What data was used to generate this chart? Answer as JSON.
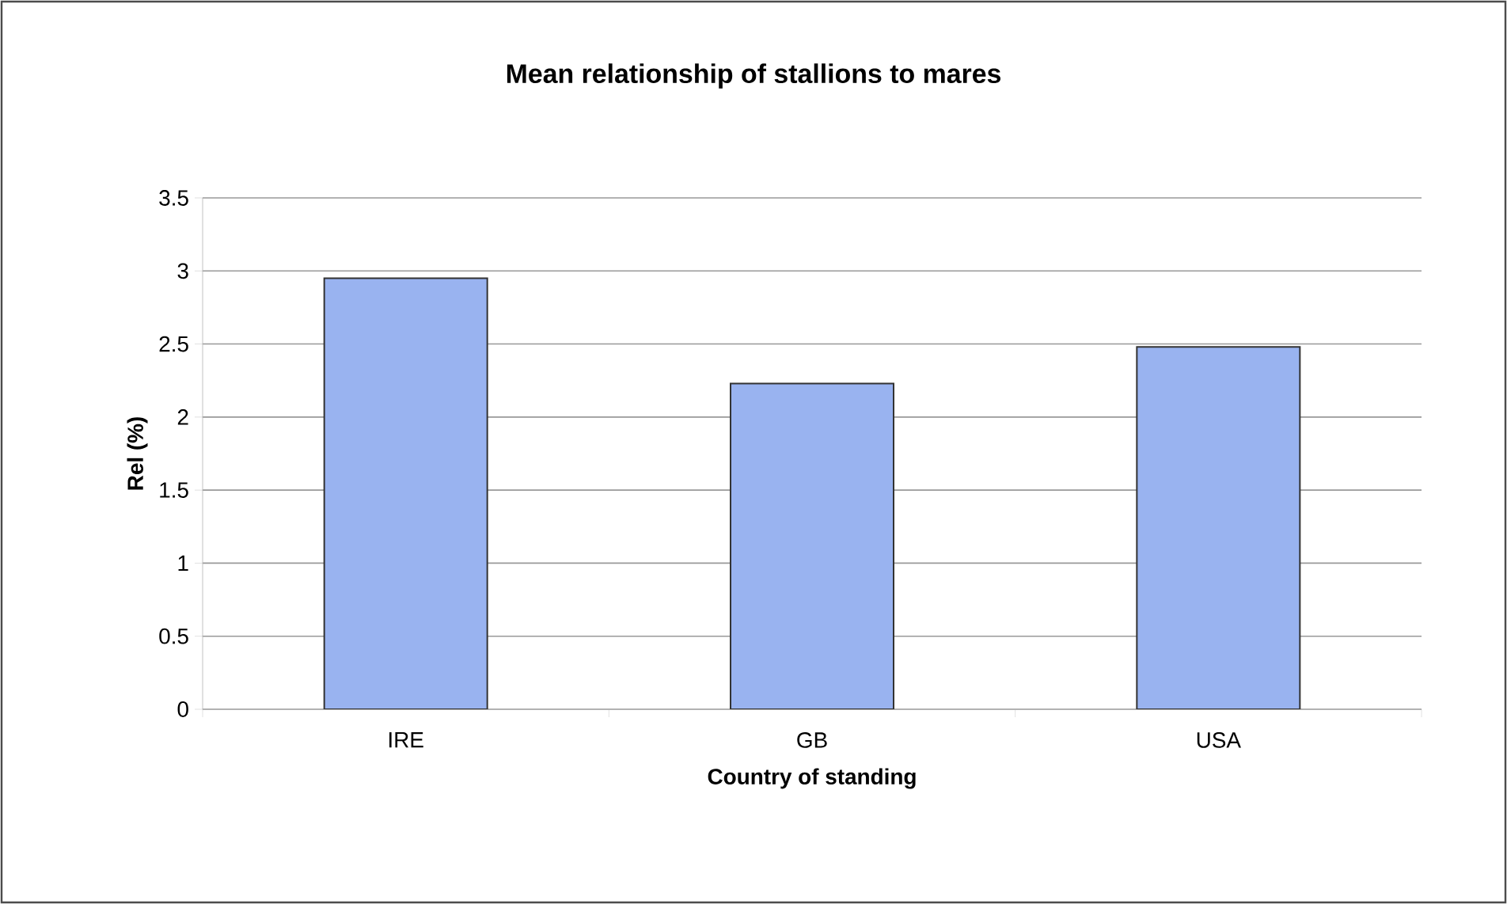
{
  "chart_data": {
    "type": "bar",
    "title": "Mean relationship of stallions to mares",
    "xlabel": "Country of standing",
    "ylabel": "Rel (%)",
    "categories": [
      "IRE",
      "GB",
      "USA"
    ],
    "values": [
      2.95,
      2.23,
      2.48
    ],
    "color": "#99b3f0",
    "ylim": [
      0,
      3.5
    ],
    "yticks": [
      0,
      0.5,
      1,
      1.5,
      2,
      2.5,
      3,
      3.5
    ],
    "grid": "y"
  }
}
